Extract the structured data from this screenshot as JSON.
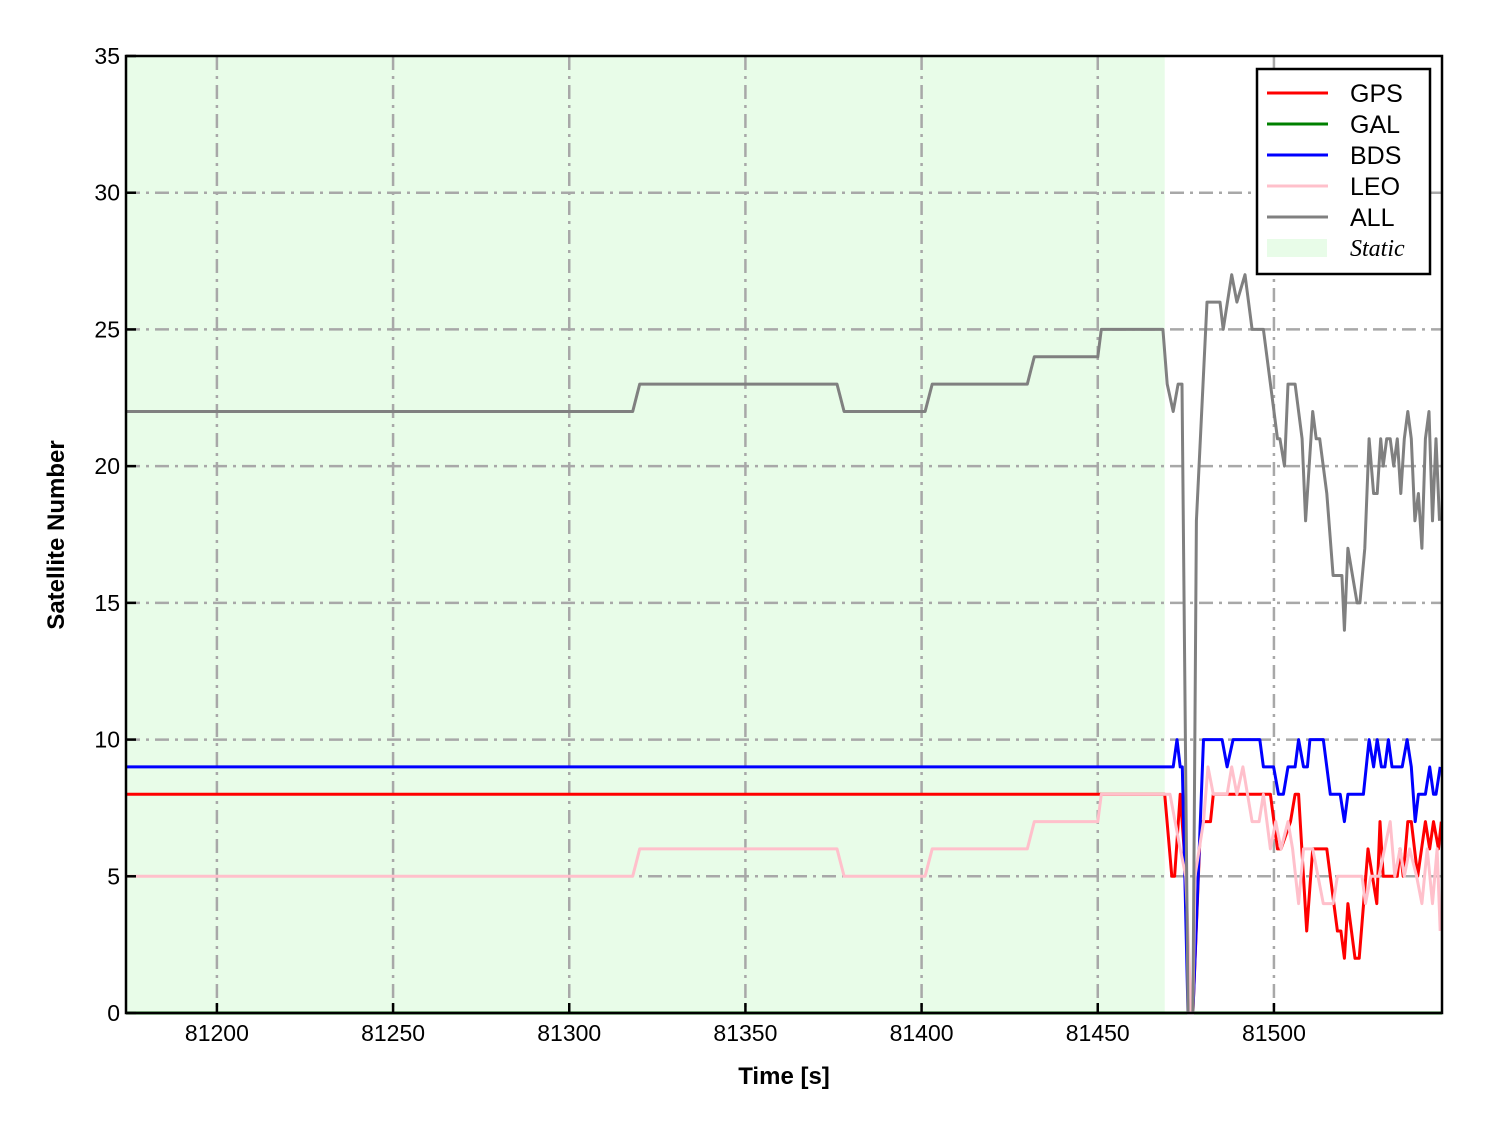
{
  "chart_data": {
    "type": "line",
    "title": "",
    "xlabel": "Time [s]",
    "ylabel": "Satellite Number",
    "xlim": [
      81174.2,
      81547.7
    ],
    "ylim": [
      0,
      35
    ],
    "xticks": [
      81200,
      81250,
      81300,
      81350,
      81400,
      81450,
      81500
    ],
    "yticks": [
      0,
      5,
      10,
      15,
      20,
      25,
      30,
      35
    ],
    "grid": true,
    "legend_placement": "top-right",
    "shaded_region": {
      "name": "Static",
      "x": [
        81174.2,
        81469
      ],
      "color": "#e8fce8"
    },
    "series": [
      {
        "name": "GPS",
        "color": "#ff0000",
        "points": [
          [
            81174.2,
            8
          ],
          [
            81469,
            8
          ],
          [
            81471,
            5
          ],
          [
            81471.8,
            5
          ],
          [
            81473.4,
            8
          ],
          [
            81474.5,
            6
          ],
          [
            81476,
            0
          ],
          [
            81477,
            0
          ],
          [
            81479.2,
            7
          ],
          [
            81482,
            7
          ],
          [
            81482.8,
            8
          ],
          [
            81499,
            8
          ],
          [
            81501,
            6
          ],
          [
            81502,
            6
          ],
          [
            81504.7,
            7
          ],
          [
            81506,
            8
          ],
          [
            81507,
            8
          ],
          [
            81509.3,
            3
          ],
          [
            81511,
            6
          ],
          [
            81515,
            6
          ],
          [
            81518,
            3
          ],
          [
            81519,
            3
          ],
          [
            81520,
            2
          ],
          [
            81521,
            4
          ],
          [
            81523,
            2
          ],
          [
            81524.2,
            2
          ],
          [
            81526.7,
            6
          ],
          [
            81529.2,
            4
          ],
          [
            81530.1,
            7
          ],
          [
            81531,
            5
          ],
          [
            81535,
            5
          ],
          [
            81535.8,
            6
          ],
          [
            81536.7,
            5
          ],
          [
            81538,
            7
          ],
          [
            81539,
            7
          ],
          [
            81540.8,
            5
          ],
          [
            81543,
            7
          ],
          [
            81544.2,
            6
          ],
          [
            81545.3,
            7
          ],
          [
            81546.7,
            6
          ],
          [
            81547.5,
            7
          ]
        ]
      },
      {
        "name": "GAL",
        "color": "#008000",
        "points": [
          [
            81174.2,
            0
          ],
          [
            81547.7,
            0
          ]
        ]
      },
      {
        "name": "BDS",
        "color": "#0000ff",
        "points": [
          [
            81174.2,
            9
          ],
          [
            81471.4,
            9
          ],
          [
            81472.5,
            10
          ],
          [
            81473.4,
            9
          ],
          [
            81474,
            9
          ],
          [
            81475.6,
            0
          ],
          [
            81477,
            0
          ],
          [
            81480,
            10
          ],
          [
            81485.3,
            10
          ],
          [
            81486.7,
            9
          ],
          [
            81488.4,
            10
          ],
          [
            81496,
            10
          ],
          [
            81497,
            9
          ],
          [
            81499.9,
            9
          ],
          [
            81501.3,
            8
          ],
          [
            81502.7,
            8
          ],
          [
            81504,
            9
          ],
          [
            81506,
            9
          ],
          [
            81507,
            10
          ],
          [
            81508.4,
            9
          ],
          [
            81509.5,
            9
          ],
          [
            81510.2,
            10
          ],
          [
            81514,
            10
          ],
          [
            81516,
            8
          ],
          [
            81518.8,
            8
          ],
          [
            81520,
            7
          ],
          [
            81521,
            8
          ],
          [
            81525.4,
            8
          ],
          [
            81527,
            10
          ],
          [
            81528.3,
            9
          ],
          [
            81529.3,
            10
          ],
          [
            81530.5,
            9
          ],
          [
            81531.5,
            9
          ],
          [
            81532.5,
            10
          ],
          [
            81533.5,
            9
          ],
          [
            81536.4,
            9
          ],
          [
            81537.8,
            10
          ],
          [
            81539,
            9
          ],
          [
            81540.1,
            7
          ],
          [
            81541,
            8
          ],
          [
            81543,
            8
          ],
          [
            81544.2,
            9
          ],
          [
            81545.3,
            8
          ],
          [
            81546,
            8
          ],
          [
            81547.2,
            9
          ]
        ]
      },
      {
        "name": "LEO",
        "color": "#ffc0cb",
        "points": [
          [
            81174.2,
            5
          ],
          [
            81318,
            5
          ],
          [
            81320,
            6
          ],
          [
            81376,
            6
          ],
          [
            81378,
            5
          ],
          [
            81401,
            5
          ],
          [
            81403,
            6
          ],
          [
            81430,
            6
          ],
          [
            81432,
            7
          ],
          [
            81450,
            7
          ],
          [
            81451,
            8
          ],
          [
            81470.5,
            8
          ],
          [
            81473.4,
            6
          ],
          [
            81475,
            5
          ],
          [
            81476.5,
            0
          ],
          [
            81477,
            0
          ],
          [
            81477.6,
            5
          ],
          [
            81480,
            7
          ],
          [
            81481.3,
            9
          ],
          [
            81482.8,
            8
          ],
          [
            81486.7,
            8
          ],
          [
            81488,
            9
          ],
          [
            81489.5,
            8
          ],
          [
            81491.2,
            9
          ],
          [
            81493.8,
            7
          ],
          [
            81495.8,
            7
          ],
          [
            81497,
            8
          ],
          [
            81499,
            6
          ],
          [
            81500.5,
            7
          ],
          [
            81502,
            6
          ],
          [
            81504,
            7
          ],
          [
            81505.3,
            6
          ],
          [
            81507,
            4
          ],
          [
            81508.4,
            6
          ],
          [
            81511,
            6
          ],
          [
            81514,
            4
          ],
          [
            81516.8,
            4
          ],
          [
            81518,
            5
          ],
          [
            81525,
            5
          ],
          [
            81526,
            4
          ],
          [
            81527.5,
            5
          ],
          [
            81529.8,
            5
          ],
          [
            81533,
            7
          ],
          [
            81534.3,
            5
          ],
          [
            81535.8,
            6
          ],
          [
            81537,
            5
          ],
          [
            81538.5,
            6
          ],
          [
            81540.5,
            5
          ],
          [
            81542,
            4
          ],
          [
            81543.5,
            6
          ],
          [
            81545,
            4
          ],
          [
            81546.3,
            6
          ],
          [
            81547.2,
            3
          ]
        ]
      },
      {
        "name": "ALL",
        "color": "#808080",
        "points": [
          [
            81174.2,
            22
          ],
          [
            81318,
            22
          ],
          [
            81320,
            23
          ],
          [
            81376,
            23
          ],
          [
            81378,
            22
          ],
          [
            81401,
            22
          ],
          [
            81403,
            23
          ],
          [
            81430,
            23
          ],
          [
            81432,
            24
          ],
          [
            81450,
            24
          ],
          [
            81451,
            25
          ],
          [
            81468.5,
            25
          ],
          [
            81469.7,
            23
          ],
          [
            81471.4,
            22
          ],
          [
            81472.8,
            23
          ],
          [
            81473.9,
            23
          ],
          [
            81475.6,
            0
          ],
          [
            81477,
            0
          ],
          [
            81478,
            18
          ],
          [
            81481,
            26
          ],
          [
            81484.7,
            26
          ],
          [
            81485.6,
            25
          ],
          [
            81488,
            27
          ],
          [
            81489.5,
            26
          ],
          [
            81491.8,
            27
          ],
          [
            81493.8,
            25
          ],
          [
            81497,
            25
          ],
          [
            81501,
            21
          ],
          [
            81501.7,
            21
          ],
          [
            81503,
            20
          ],
          [
            81504,
            23
          ],
          [
            81506,
            23
          ],
          [
            81508,
            21
          ],
          [
            81509,
            18
          ],
          [
            81511,
            22
          ],
          [
            81512,
            21
          ],
          [
            81513,
            21
          ],
          [
            81515,
            19
          ],
          [
            81516.8,
            16
          ],
          [
            81519.3,
            16
          ],
          [
            81520,
            14
          ],
          [
            81521,
            17
          ],
          [
            81523.6,
            15
          ],
          [
            81524.4,
            15
          ],
          [
            81525.8,
            17
          ],
          [
            81527,
            21
          ],
          [
            81528.3,
            19
          ],
          [
            81529.3,
            19
          ],
          [
            81530.3,
            21
          ],
          [
            81531,
            20
          ],
          [
            81532,
            21
          ],
          [
            81533,
            21
          ],
          [
            81534,
            20
          ],
          [
            81535,
            21
          ],
          [
            81536,
            19
          ],
          [
            81537,
            21
          ],
          [
            81538,
            22
          ],
          [
            81539,
            21
          ],
          [
            81540,
            18
          ],
          [
            81541,
            19
          ],
          [
            81542,
            17
          ],
          [
            81543,
            21
          ],
          [
            81544,
            22
          ],
          [
            81545,
            18
          ],
          [
            81546,
            21
          ],
          [
            81547,
            18
          ]
        ]
      }
    ]
  }
}
